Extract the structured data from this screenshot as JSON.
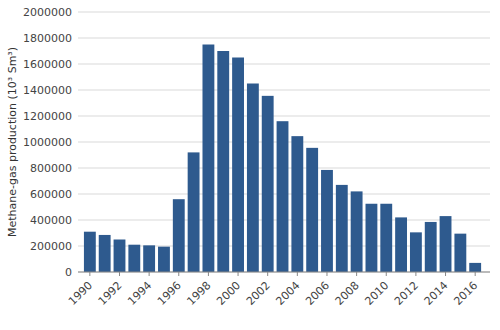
{
  "chart_data": {
    "type": "bar",
    "x": [
      1990,
      1991,
      1992,
      1993,
      1994,
      1995,
      1996,
      1997,
      1998,
      1999,
      2000,
      2001,
      2002,
      2003,
      2004,
      2005,
      2006,
      2007,
      2008,
      2009,
      2010,
      2011,
      2012,
      2013,
      2014,
      2015,
      2016
    ],
    "values": [
      310000,
      285000,
      250000,
      210000,
      205000,
      195000,
      560000,
      920000,
      1750000,
      1700000,
      1650000,
      1450000,
      1355000,
      1160000,
      1045000,
      955000,
      785000,
      670000,
      620000,
      525000,
      525000,
      420000,
      305000,
      385000,
      430000,
      295000,
      70000
    ],
    "color": "#2E5A8E",
    "ylabel": "Methane-gas production (10³ Sm³)",
    "ylim": [
      0,
      2000000
    ],
    "yticks": [
      0,
      200000,
      400000,
      600000,
      800000,
      1000000,
      1200000,
      1400000,
      1600000,
      1800000,
      2000000
    ],
    "xlim": [
      1989.2,
      2017.0
    ],
    "xticks": [
      1990,
      1992,
      1994,
      1996,
      1998,
      2000,
      2002,
      2004,
      2006,
      2008,
      2010,
      2012,
      2014,
      2016
    ],
    "grid": true
  }
}
